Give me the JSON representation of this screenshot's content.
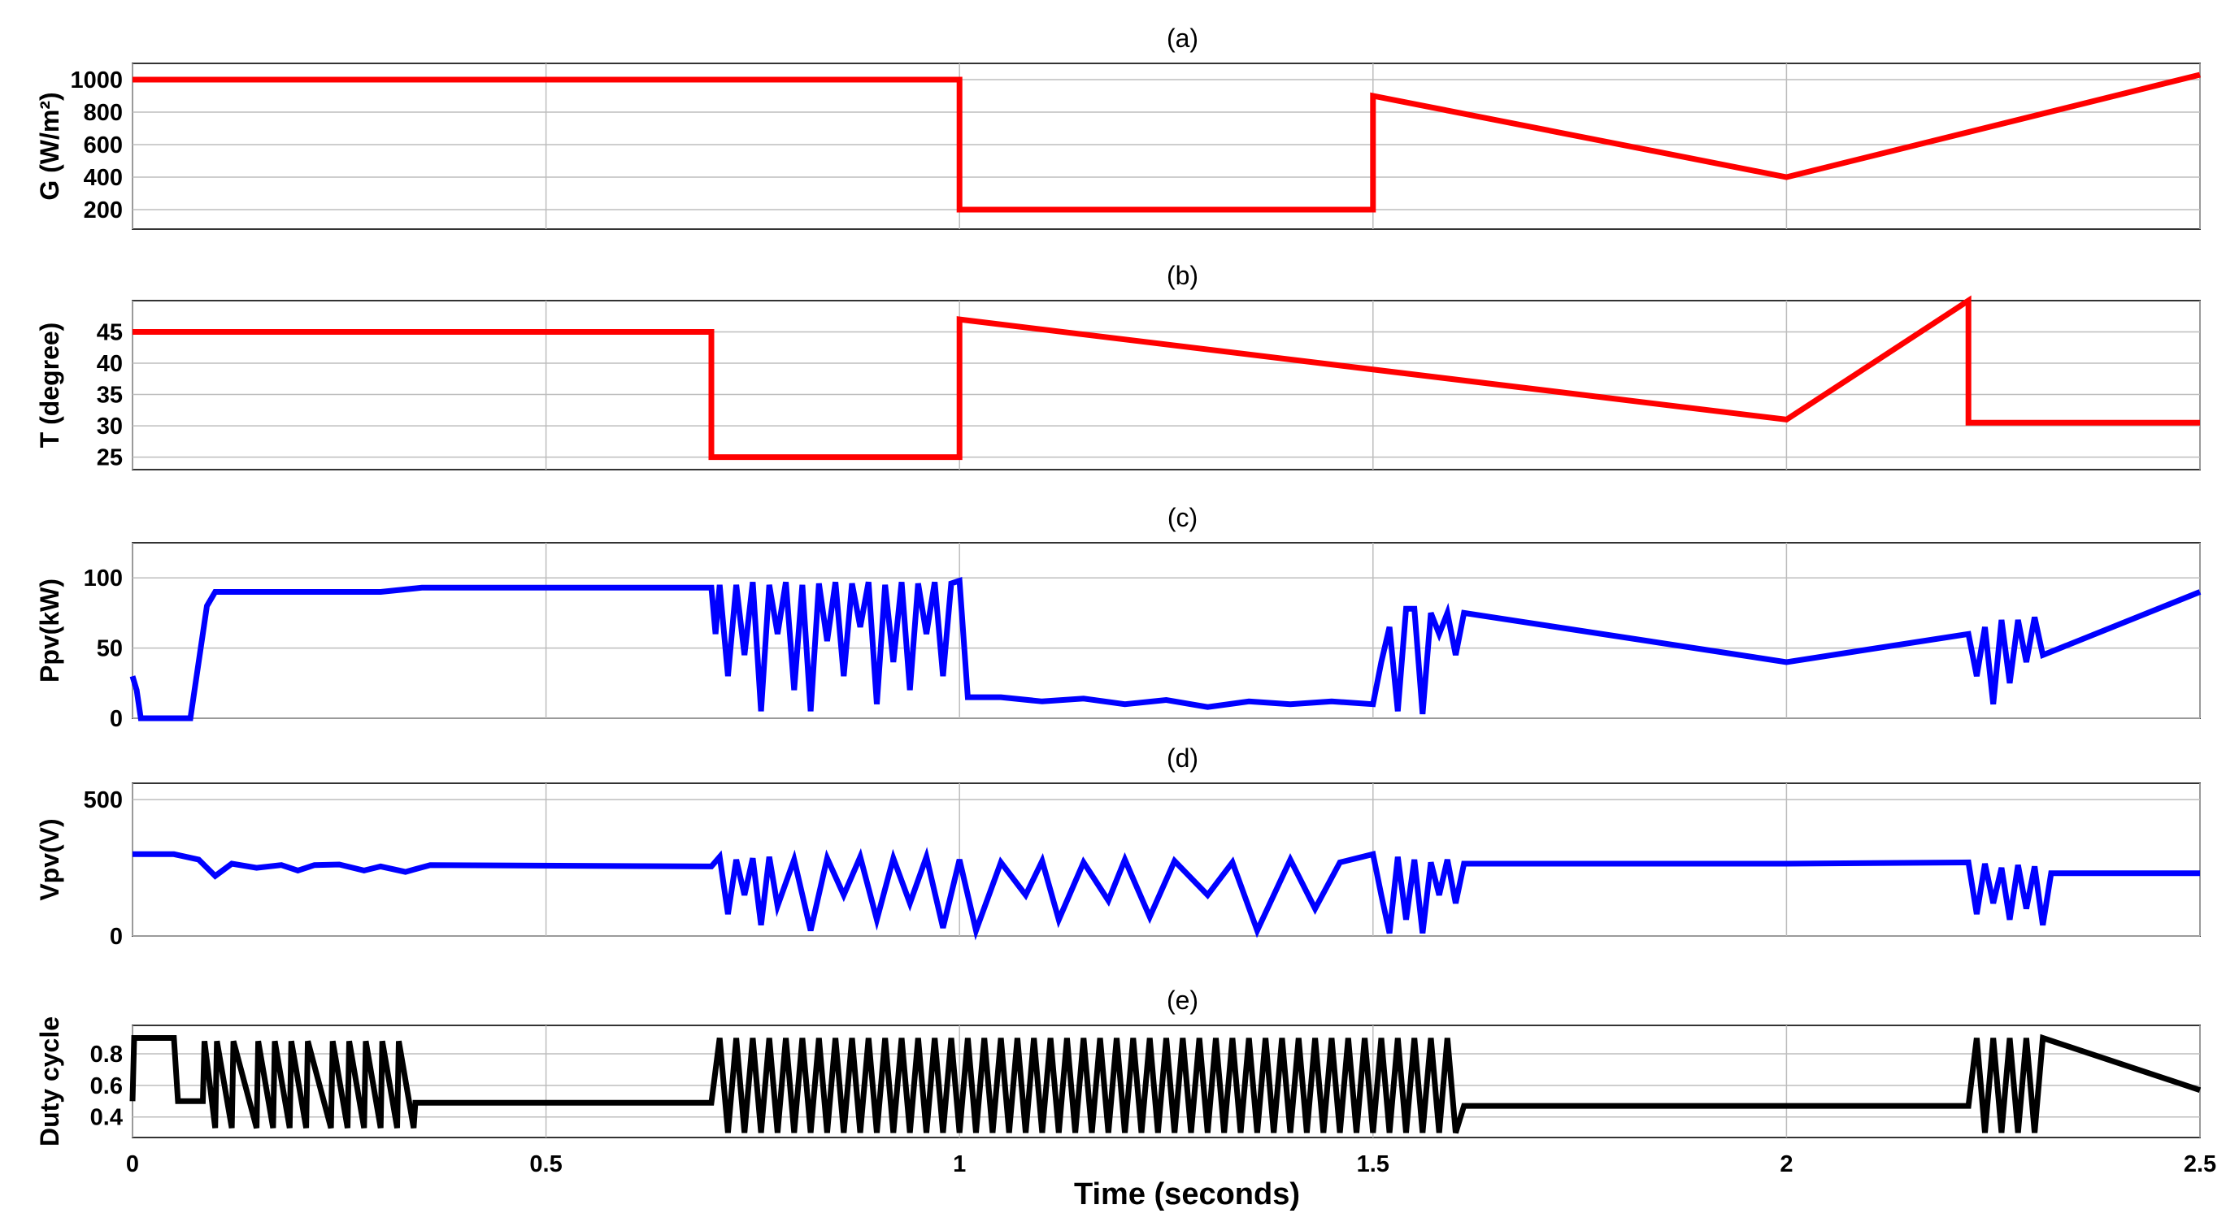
{
  "figure": {
    "xlabel": "Time (seconds)"
  },
  "chart_data": [
    {
      "type": "line",
      "title": "(a)",
      "ylabel": "G (W/m²)",
      "xlim": [
        0,
        2.5
      ],
      "ylim": [
        80,
        1100
      ],
      "xticks": [
        0,
        0.5,
        1,
        1.5,
        2,
        2.5
      ],
      "yticks": [
        200,
        400,
        600,
        800,
        1000
      ],
      "color": "#ff0000",
      "series": [
        {
          "x": [
            0,
            1.0,
            1.0,
            1.5,
            1.5,
            2.0,
            2.5
          ],
          "values": [
            1000,
            1000,
            200,
            200,
            900,
            400,
            1030
          ]
        }
      ]
    },
    {
      "type": "line",
      "title": "(b)",
      "ylabel": "T (degree)",
      "xlim": [
        0,
        2.5
      ],
      "ylim": [
        23,
        50
      ],
      "xticks": [
        0,
        0.5,
        1,
        1.5,
        2,
        2.5
      ],
      "yticks": [
        25,
        30,
        35,
        40,
        45
      ],
      "color": "#ff0000",
      "series": [
        {
          "x": [
            0,
            0.7,
            0.7,
            1.0,
            1.0,
            2.0,
            2.22,
            2.22,
            2.5
          ],
          "values": [
            45,
            45,
            25,
            25,
            47,
            31,
            50,
            30.5,
            30.5
          ]
        }
      ]
    },
    {
      "type": "line",
      "title": "(c)",
      "ylabel": "Ppv(kW)",
      "xlim": [
        0,
        2.5
      ],
      "ylim": [
        0,
        125
      ],
      "xticks": [
        0,
        0.5,
        1,
        1.5,
        2,
        2.5
      ],
      "yticks": [
        0,
        50,
        100
      ],
      "color": "#0000ff",
      "series": [
        {
          "x": [
            0,
            0.005,
            0.01,
            0.05,
            0.07,
            0.09,
            0.1,
            0.15,
            0.2,
            0.25,
            0.3,
            0.35,
            0.7,
            0.705,
            0.71,
            0.72,
            0.73,
            0.74,
            0.75,
            0.76,
            0.77,
            0.78,
            0.79,
            0.8,
            0.81,
            0.82,
            0.83,
            0.84,
            0.85,
            0.86,
            0.87,
            0.88,
            0.89,
            0.9,
            0.91,
            0.92,
            0.93,
            0.94,
            0.95,
            0.96,
            0.97,
            0.98,
            0.99,
            1.0,
            1.01,
            1.05,
            1.1,
            1.15,
            1.2,
            1.25,
            1.3,
            1.35,
            1.4,
            1.45,
            1.5,
            1.51,
            1.52,
            1.53,
            1.54,
            1.55,
            1.56,
            1.57,
            1.58,
            1.59,
            1.6,
            1.61,
            2.0,
            2.22,
            2.23,
            2.24,
            2.25,
            2.26,
            2.27,
            2.28,
            2.29,
            2.3,
            2.31,
            2.5
          ],
          "values": [
            30,
            20,
            0,
            0,
            0,
            80,
            90,
            90,
            90,
            90,
            90,
            93,
            93,
            60,
            95,
            30,
            95,
            45,
            97,
            5,
            95,
            60,
            97,
            20,
            95,
            5,
            96,
            55,
            97,
            30,
            96,
            65,
            97,
            10,
            95,
            40,
            97,
            20,
            96,
            60,
            97,
            30,
            96,
            98,
            15,
            15,
            12,
            14,
            10,
            13,
            8,
            12,
            10,
            12,
            10,
            40,
            65,
            5,
            78,
            78,
            3,
            75,
            60,
            75,
            45,
            75,
            40,
            60,
            30,
            65,
            10,
            70,
            25,
            70,
            40,
            72,
            45,
            90
          ]
        }
      ]
    },
    {
      "type": "line",
      "title": "(d)",
      "ylabel": "Vpv(V)",
      "xlim": [
        0,
        2.5
      ],
      "ylim": [
        0,
        560
      ],
      "xticks": [
        0,
        0.5,
        1,
        1.5,
        2,
        2.5
      ],
      "yticks": [
        0,
        500
      ],
      "color": "#0000ff",
      "series": [
        {
          "x": [
            0,
            0.05,
            0.08,
            0.1,
            0.12,
            0.15,
            0.18,
            0.2,
            0.22,
            0.25,
            0.28,
            0.3,
            0.33,
            0.36,
            0.7,
            0.71,
            0.72,
            0.73,
            0.74,
            0.75,
            0.76,
            0.77,
            0.78,
            0.8,
            0.82,
            0.84,
            0.86,
            0.88,
            0.9,
            0.92,
            0.94,
            0.96,
            0.98,
            1.0,
            1.02,
            1.05,
            1.08,
            1.1,
            1.12,
            1.15,
            1.18,
            1.2,
            1.23,
            1.26,
            1.3,
            1.33,
            1.36,
            1.4,
            1.43,
            1.46,
            1.5,
            1.51,
            1.52,
            1.53,
            1.54,
            1.55,
            1.56,
            1.57,
            1.58,
            1.59,
            1.6,
            1.61,
            1.62,
            2.0,
            2.22,
            2.23,
            2.24,
            2.25,
            2.26,
            2.27,
            2.28,
            2.29,
            2.3,
            2.31,
            2.32,
            2.5
          ],
          "values": [
            300,
            300,
            280,
            220,
            265,
            250,
            260,
            240,
            260,
            262,
            240,
            255,
            235,
            260,
            255,
            290,
            80,
            280,
            150,
            285,
            40,
            290,
            110,
            280,
            20,
            285,
            150,
            290,
            60,
            285,
            120,
            290,
            30,
            280,
            20,
            270,
            150,
            275,
            60,
            270,
            130,
            280,
            70,
            275,
            150,
            270,
            20,
            280,
            100,
            270,
            300,
            150,
            10,
            290,
            60,
            280,
            10,
            270,
            150,
            280,
            120,
            265,
            265,
            265,
            270,
            80,
            265,
            120,
            250,
            60,
            260,
            100,
            255,
            40,
            230,
            230
          ]
        }
      ]
    },
    {
      "type": "line",
      "title": "(e)",
      "ylabel": "Duty cycle",
      "xlim": [
        0,
        2.5
      ],
      "ylim": [
        0.27,
        0.98
      ],
      "xticks": [
        0,
        0.5,
        1,
        1.5,
        2,
        2.5
      ],
      "xticklabels": [
        "0",
        "0.5",
        "1",
        "1.5",
        "2",
        "2.5"
      ],
      "yticks": [
        0.4,
        0.6,
        0.8
      ],
      "color": "#000000",
      "series": [
        {
          "x": [
            0,
            0.002,
            0.003,
            0.05,
            0.055,
            0.085,
            0.087,
            0.1,
            0.102,
            0.12,
            0.122,
            0.15,
            0.152,
            0.17,
            0.172,
            0.19,
            0.192,
            0.21,
            0.212,
            0.24,
            0.242,
            0.26,
            0.262,
            0.28,
            0.282,
            0.3,
            0.302,
            0.32,
            0.322,
            0.34,
            0.342,
            0.7,
            0.71,
            0.72,
            0.73,
            0.74,
            0.75,
            0.76,
            0.77,
            0.78,
            0.79,
            0.8,
            0.81,
            0.82,
            0.83,
            0.84,
            0.85,
            0.86,
            0.87,
            0.88,
            0.89,
            0.9,
            0.91,
            0.92,
            0.93,
            0.94,
            0.95,
            0.96,
            0.97,
            0.98,
            0.99,
            1.0,
            1.01,
            1.02,
            1.03,
            1.04,
            1.05,
            1.06,
            1.07,
            1.08,
            1.09,
            1.1,
            1.11,
            1.12,
            1.13,
            1.14,
            1.15,
            1.16,
            1.17,
            1.18,
            1.19,
            1.2,
            1.21,
            1.22,
            1.23,
            1.24,
            1.25,
            1.26,
            1.27,
            1.28,
            1.29,
            1.3,
            1.31,
            1.32,
            1.33,
            1.34,
            1.35,
            1.36,
            1.37,
            1.38,
            1.39,
            1.4,
            1.41,
            1.42,
            1.43,
            1.44,
            1.45,
            1.46,
            1.47,
            1.48,
            1.49,
            1.5,
            1.51,
            1.52,
            1.53,
            1.54,
            1.55,
            1.56,
            1.57,
            1.58,
            1.59,
            1.6,
            1.61,
            2.22,
            2.23,
            2.24,
            2.25,
            2.26,
            2.27,
            2.28,
            2.29,
            2.3,
            2.31,
            2.5
          ],
          "values": [
            0.5,
            0.9,
            0.9,
            0.9,
            0.5,
            0.5,
            0.88,
            0.33,
            0.88,
            0.33,
            0.88,
            0.33,
            0.88,
            0.33,
            0.88,
            0.33,
            0.88,
            0.33,
            0.88,
            0.33,
            0.88,
            0.33,
            0.88,
            0.33,
            0.88,
            0.33,
            0.88,
            0.33,
            0.88,
            0.33,
            0.49,
            0.49,
            0.9,
            0.3,
            0.9,
            0.3,
            0.9,
            0.3,
            0.9,
            0.3,
            0.9,
            0.3,
            0.9,
            0.3,
            0.9,
            0.3,
            0.9,
            0.3,
            0.9,
            0.3,
            0.9,
            0.3,
            0.9,
            0.3,
            0.9,
            0.3,
            0.9,
            0.3,
            0.9,
            0.3,
            0.9,
            0.3,
            0.9,
            0.3,
            0.9,
            0.3,
            0.9,
            0.3,
            0.9,
            0.3,
            0.9,
            0.3,
            0.9,
            0.3,
            0.9,
            0.3,
            0.9,
            0.3,
            0.9,
            0.3,
            0.9,
            0.3,
            0.9,
            0.3,
            0.9,
            0.3,
            0.9,
            0.3,
            0.9,
            0.3,
            0.9,
            0.3,
            0.9,
            0.3,
            0.9,
            0.3,
            0.9,
            0.3,
            0.9,
            0.3,
            0.9,
            0.3,
            0.9,
            0.3,
            0.9,
            0.3,
            0.9,
            0.3,
            0.9,
            0.3,
            0.9,
            0.3,
            0.9,
            0.3,
            0.9,
            0.3,
            0.9,
            0.3,
            0.9,
            0.3,
            0.9,
            0.3,
            0.47,
            0.47,
            0.9,
            0.3,
            0.9,
            0.3,
            0.9,
            0.3,
            0.9,
            0.3,
            0.9,
            0.57
          ]
        }
      ]
    }
  ]
}
